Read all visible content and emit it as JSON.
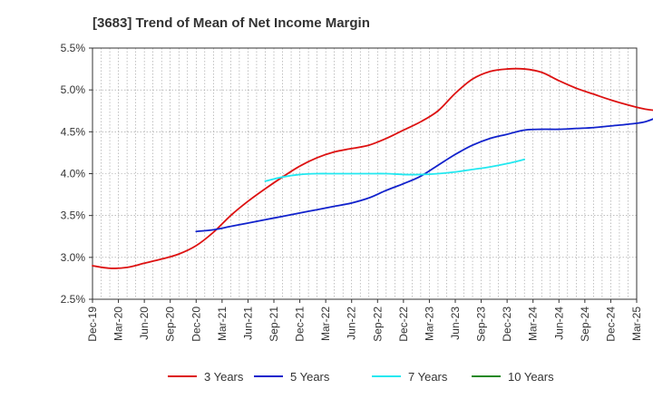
{
  "chart_data": {
    "type": "line",
    "title": "[3683]  Trend of Mean of Net Income Margin",
    "y_axis": {
      "min": 2.5,
      "max": 5.5,
      "ticks": [
        2.5,
        3.0,
        3.5,
        4.0,
        4.5,
        5.0,
        5.5
      ],
      "tick_labels": [
        "2.5%",
        "3.0%",
        "3.5%",
        "4.0%",
        "4.5%",
        "5.0%",
        "5.5%"
      ],
      "unit": "%"
    },
    "x_axis": {
      "tick_labels": [
        "Dec-19",
        "Mar-20",
        "Jun-20",
        "Sep-20",
        "Dec-20",
        "Mar-21",
        "Jun-21",
        "Sep-21",
        "Dec-21",
        "Mar-22",
        "Jun-22",
        "Sep-22",
        "Dec-22",
        "Mar-23",
        "Jun-23",
        "Sep-23",
        "Dec-23",
        "Mar-24",
        "Jun-24",
        "Sep-24",
        "Dec-24",
        "Mar-25"
      ]
    },
    "grid": true,
    "legend_position": "bottom",
    "series": [
      {
        "name": "3 Years",
        "color": "#dd1111",
        "start_index": 0,
        "values": [
          2.9,
          2.87,
          2.88,
          2.93,
          2.98,
          3.04,
          3.14,
          3.3,
          3.5,
          3.67,
          3.82,
          3.96,
          4.09,
          4.19,
          4.26,
          4.3,
          4.34,
          4.42,
          4.52,
          4.62,
          4.75,
          4.96,
          5.13,
          5.22,
          5.25,
          5.25,
          5.21,
          5.11,
          5.02,
          4.95,
          4.88,
          4.82,
          4.77,
          4.75,
          4.75
        ]
      },
      {
        "name": "5 Years",
        "color": "#1122cc",
        "start_index": 12,
        "values": [
          3.31,
          3.33,
          3.37,
          3.41,
          3.45,
          3.49,
          3.53,
          3.57,
          3.61,
          3.65,
          3.71,
          3.8,
          3.88,
          3.97,
          4.1,
          4.23,
          4.34,
          4.42,
          4.47,
          4.52,
          4.53,
          4.53,
          4.54,
          4.55,
          4.57,
          4.59,
          4.62,
          4.7
        ]
      },
      {
        "name": "7 Years",
        "color": "#22e8f0",
        "start_index": 20,
        "values": [
          3.91,
          3.96,
          3.99,
          4.0,
          4.0,
          4.0,
          4.0,
          4.0,
          3.99,
          3.99,
          4.0,
          4.02,
          4.05,
          4.08,
          4.12,
          4.17
        ]
      },
      {
        "name": "10 Years",
        "color": "#228822",
        "start_index": 0,
        "values": []
      }
    ]
  }
}
